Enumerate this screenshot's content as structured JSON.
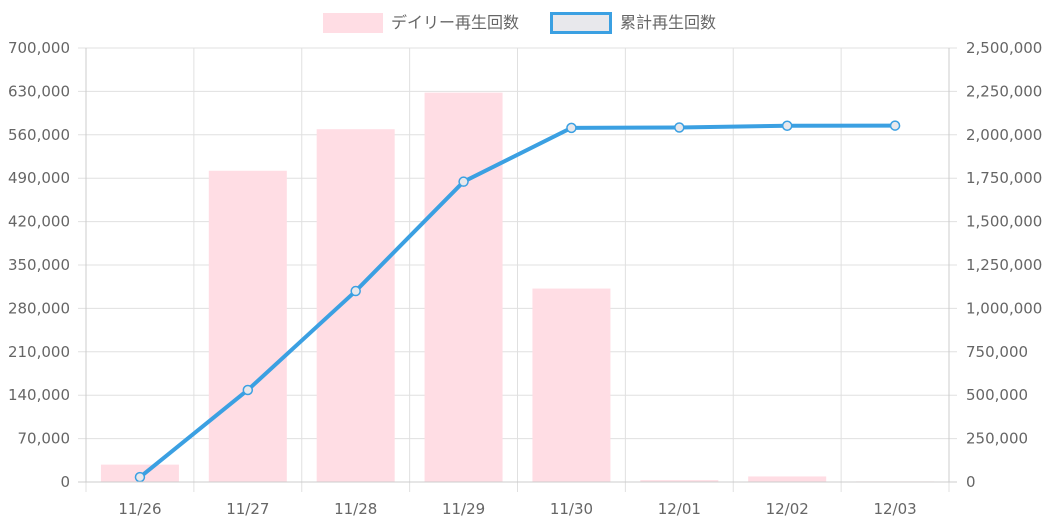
{
  "chart_data": {
    "type": "bar",
    "categories": [
      "11/26",
      "11/27",
      "11/28",
      "11/29",
      "11/30",
      "12/01",
      "12/02",
      "12/03"
    ],
    "series": [
      {
        "name": "デイリー再生回数",
        "type": "bar",
        "axis": "left",
        "values": [
          28000,
          502000,
          569000,
          628000,
          312000,
          3000,
          9000,
          1000
        ],
        "color": "#ffdde4"
      },
      {
        "name": "累計再生回数",
        "type": "line",
        "axis": "right",
        "values": [
          28000,
          530000,
          1100000,
          1730000,
          2040000,
          2042000,
          2052000,
          2053000
        ],
        "color": "#3ba0e2",
        "point_fill": "#e8e8ec"
      }
    ],
    "y_left": {
      "min": 0,
      "max": 700000,
      "ticks": [
        "700,000",
        "630,000",
        "560,000",
        "490,000",
        "420,000",
        "350,000",
        "280,000",
        "210,000",
        "140,000",
        "70,000",
        "0"
      ]
    },
    "y_right": {
      "min": 0,
      "max": 2500000,
      "ticks": [
        "2,500,000",
        "2,250,000",
        "2,000,000",
        "1,750,000",
        "1,500,000",
        "1,250,000",
        "1,000,000",
        "750,000",
        "500,000",
        "250,000",
        "0"
      ]
    },
    "grid": true,
    "legend_position": "top",
    "gridline_color": "#e0e0e0"
  }
}
